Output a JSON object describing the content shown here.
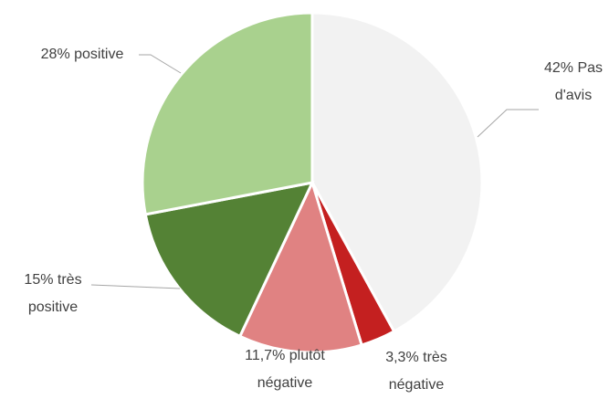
{
  "chart_data": {
    "type": "pie",
    "values": [
      42,
      3.3,
      11.7,
      15,
      28
    ],
    "value_labels": [
      "42% Pas d'avis",
      "3,3% très négative",
      "11,7% plutôt négative",
      "15% très positive",
      "28% positive"
    ],
    "colors": [
      "#f2f2f2",
      "#c42020",
      "#e08282",
      "#548235",
      "#a9d18e"
    ]
  }
}
